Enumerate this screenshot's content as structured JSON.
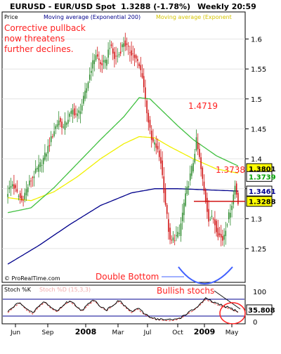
{
  "header": {
    "symbol": "EURUSD - EUR/USD Spot",
    "quote": "1.3288 (-1.78%)",
    "period": "Weekly 20:59"
  },
  "legend": {
    "price": "Price",
    "ma200": "Moving average (Exponential 200)",
    "ma_other": "Moving average (Exponent",
    "ma_green": ""
  },
  "annotations": {
    "title_line1": "Corrective pullback",
    "title_line2": "now threatens",
    "title_line3": "further declines.",
    "peak1": "1.4719",
    "peak2": "1.3738",
    "double_bottom": "Double Bottom",
    "bullish_stochs": "Bullish stochs",
    "copyright": "© ProRealTime.com"
  },
  "stoch": {
    "label": "Stoch %K",
    "label_faded": "Stoch %D (15,3,3)",
    "value": "35.808",
    "axis_100": "100",
    "axis_0": "0"
  },
  "colors": {
    "bull": "#2e8b2e",
    "bear": "#d01010",
    "ma200": "#00008b",
    "ma_yellow": "#f0f000",
    "ma_green": "#40c040",
    "annotation": "#ff2020",
    "arc": "#4060ff"
  },
  "chart_data": {
    "type": "candlestick",
    "title": "EURUSD - EUR/USD Spot",
    "period": "Weekly",
    "y_range": [
      1.21,
      1.63
    ],
    "y_ticks": [
      "1.6",
      "1.55",
      "1.5",
      "1.45",
      "1.4",
      "1.35",
      "1.3",
      "1.25"
    ],
    "x_ticks": [
      "Jun",
      "Sep",
      "2008",
      "Mar",
      "Jul",
      "Oct",
      "2009",
      "May"
    ],
    "last_price_markers": [
      {
        "label": "1.3801",
        "value": 1.3801,
        "bg": "#ffff00",
        "fg": "#000000"
      },
      {
        "label": "1.3739",
        "value": 1.3739,
        "bg": "#ffffff",
        "fg": "#00a000"
      },
      {
        "label": "1.3461",
        "value": 1.3461,
        "bg": "#ffffff",
        "fg": "#000090"
      },
      {
        "label": "1.3288",
        "value": 1.3288,
        "bg": "#ffff00",
        "fg": "#000000"
      }
    ],
    "horizontal_line": 1.329,
    "close_path": [
      [
        0,
        1.345
      ],
      [
        3,
        1.358
      ],
      [
        6,
        1.342
      ],
      [
        9,
        1.33
      ],
      [
        12,
        1.348
      ],
      [
        15,
        1.365
      ],
      [
        18,
        1.378
      ],
      [
        21,
        1.39
      ],
      [
        24,
        1.405
      ],
      [
        27,
        1.425
      ],
      [
        30,
        1.448
      ],
      [
        33,
        1.465
      ],
      [
        36,
        1.452
      ],
      [
        39,
        1.468
      ],
      [
        42,
        1.48
      ],
      [
        45,
        1.472
      ],
      [
        48,
        1.49
      ],
      [
        51,
        1.518
      ],
      [
        54,
        1.552
      ],
      [
        57,
        1.575
      ],
      [
        60,
        1.558
      ],
      [
        63,
        1.56
      ],
      [
        66,
        1.59
      ],
      [
        69,
        1.568
      ],
      [
        72,
        1.575
      ],
      [
        75,
        1.595
      ],
      [
        78,
        1.582
      ],
      [
        81,
        1.575
      ],
      [
        84,
        1.56
      ],
      [
        87,
        1.54
      ],
      [
        90,
        1.48
      ],
      [
        93,
        1.43
      ],
      [
        96,
        1.42
      ],
      [
        99,
        1.395
      ],
      [
        102,
        1.325
      ],
      [
        105,
        1.26
      ],
      [
        108,
        1.268
      ],
      [
        111,
        1.275
      ],
      [
        114,
        1.325
      ],
      [
        117,
        1.36
      ],
      [
        120,
        1.395
      ],
      [
        122,
        1.43
      ],
      [
        124,
        1.4
      ],
      [
        127,
        1.345
      ],
      [
        130,
        1.3
      ],
      [
        133,
        1.3
      ],
      [
        136,
        1.275
      ],
      [
        139,
        1.265
      ],
      [
        142,
        1.295
      ],
      [
        145,
        1.325
      ],
      [
        147,
        1.355
      ],
      [
        149,
        1.329
      ]
    ],
    "ema200": [
      [
        0,
        1.224
      ],
      [
        20,
        1.255
      ],
      [
        40,
        1.29
      ],
      [
        60,
        1.322
      ],
      [
        80,
        1.343
      ],
      [
        95,
        1.35
      ],
      [
        110,
        1.35
      ],
      [
        130,
        1.348
      ],
      [
        149,
        1.346
      ]
    ],
    "ma_yellow": [
      [
        0,
        1.335
      ],
      [
        15,
        1.33
      ],
      [
        30,
        1.345
      ],
      [
        45,
        1.37
      ],
      [
        60,
        1.4
      ],
      [
        75,
        1.425
      ],
      [
        85,
        1.437
      ],
      [
        95,
        1.435
      ],
      [
        105,
        1.42
      ],
      [
        120,
        1.4
      ],
      [
        135,
        1.383
      ],
      [
        149,
        1.376
      ]
    ],
    "ma_green": [
      [
        0,
        1.31
      ],
      [
        15,
        1.318
      ],
      [
        30,
        1.352
      ],
      [
        45,
        1.392
      ],
      [
        60,
        1.432
      ],
      [
        75,
        1.47
      ],
      [
        85,
        1.502
      ],
      [
        92,
        1.5
      ],
      [
        100,
        1.48
      ],
      [
        110,
        1.455
      ],
      [
        120,
        1.432
      ],
      [
        135,
        1.405
      ],
      [
        149,
        1.388
      ]
    ],
    "stoch_values": [
      [
        0,
        35
      ],
      [
        4,
        55
      ],
      [
        8,
        70
      ],
      [
        12,
        45
      ],
      [
        16,
        30
      ],
      [
        20,
        55
      ],
      [
        24,
        72
      ],
      [
        28,
        50
      ],
      [
        32,
        38
      ],
      [
        36,
        60
      ],
      [
        40,
        75
      ],
      [
        44,
        58
      ],
      [
        48,
        40
      ],
      [
        52,
        62
      ],
      [
        56,
        78
      ],
      [
        60,
        55
      ],
      [
        64,
        42
      ],
      [
        68,
        60
      ],
      [
        72,
        75
      ],
      [
        76,
        55
      ],
      [
        80,
        35
      ],
      [
        84,
        48
      ],
      [
        88,
        30
      ],
      [
        92,
        18
      ],
      [
        96,
        10
      ],
      [
        100,
        8
      ],
      [
        104,
        6
      ],
      [
        108,
        8
      ],
      [
        112,
        15
      ],
      [
        116,
        30
      ],
      [
        120,
        42
      ],
      [
        124,
        60
      ],
      [
        128,
        82
      ],
      [
        132,
        72
      ],
      [
        136,
        62
      ],
      [
        140,
        55
      ],
      [
        144,
        48
      ],
      [
        149,
        36
      ]
    ],
    "stoch_range": [
      0,
      100
    ]
  }
}
